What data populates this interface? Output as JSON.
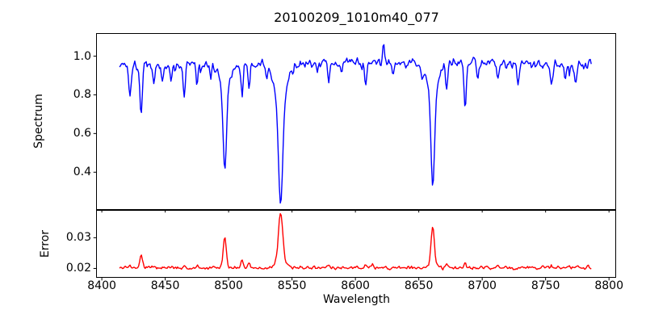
{
  "figure": {
    "title": "20100209_1010m40_077",
    "background_color": "#ffffff",
    "axes_color": "#000000",
    "text_color": "#000000"
  },
  "chart_data": [
    {
      "type": "line",
      "panel": "spectrum",
      "title": "20100209_1010m40_077",
      "ylabel": "Spectrum",
      "color": "#0000ff",
      "grid": false,
      "legend": null,
      "xlim": [
        8395.8,
        8805.3
      ],
      "ylim": [
        0.207,
        1.117
      ],
      "ytick_values": [
        0.4,
        0.6,
        0.8,
        1.0
      ],
      "ytick_labels": [
        "0.4",
        "0.6",
        "0.8",
        "1.0"
      ],
      "x_start": 8414.0,
      "x_end": 8786.5,
      "x_step": 0.75,
      "continuum": 0.962,
      "continuum_wave_amp": 0.007,
      "noise_amp": 0.022,
      "noise_seed": 1337,
      "absorption_lines": [
        {
          "center": 8422.2,
          "depth": 0.16,
          "sigma": 0.9
        },
        {
          "center": 8431.0,
          "depth": 0.25,
          "sigma": 1.0
        },
        {
          "center": 8441.0,
          "depth": 0.1,
          "sigma": 0.8
        },
        {
          "center": 8447.7,
          "depth": 0.1,
          "sigma": 0.8
        },
        {
          "center": 8454.7,
          "depth": 0.09,
          "sigma": 0.8
        },
        {
          "center": 8465.0,
          "depth": 0.16,
          "sigma": 0.9
        },
        {
          "center": 8475.0,
          "depth": 0.1,
          "sigma": 0.8
        },
        {
          "center": 8486.0,
          "depth": 0.08,
          "sigma": 0.7
        },
        {
          "center": 8497.0,
          "depth": 0.4,
          "sigma": 1.25,
          "wing_depth": 0.145,
          "wing_sigma": 3.5
        },
        {
          "center": 8510.6,
          "depth": 0.15,
          "sigma": 0.9
        },
        {
          "center": 8516.0,
          "depth": 0.13,
          "sigma": 0.8
        },
        {
          "center": 8530.0,
          "depth": 0.055,
          "sigma": 0.8
        },
        {
          "center": 8541.0,
          "depth": 0.5,
          "sigma": 1.6,
          "wing_depth": 0.225,
          "wing_sigma": 4.5
        },
        {
          "center": 8579.0,
          "depth": 0.1,
          "sigma": 0.85
        },
        {
          "center": 8589.0,
          "depth": 0.06,
          "sigma": 0.7
        },
        {
          "center": 8608.0,
          "depth": 0.1,
          "sigma": 0.9
        },
        {
          "center": 8629.7,
          "depth": 0.07,
          "sigma": 0.8
        },
        {
          "center": 8652.8,
          "depth": 0.06,
          "sigma": 0.7
        },
        {
          "center": 8661.0,
          "depth": 0.47,
          "sigma": 1.35,
          "wing_depth": 0.175,
          "wing_sigma": 4.0
        },
        {
          "center": 8672.0,
          "depth": 0.13,
          "sigma": 0.8
        },
        {
          "center": 8686.5,
          "depth": 0.22,
          "sigma": 0.9
        },
        {
          "center": 8696.5,
          "depth": 0.08,
          "sigma": 0.8
        },
        {
          "center": 8712.4,
          "depth": 0.09,
          "sigma": 0.8
        },
        {
          "center": 8728.3,
          "depth": 0.09,
          "sigma": 0.8
        },
        {
          "center": 8754.6,
          "depth": 0.1,
          "sigma": 0.8
        },
        {
          "center": 8765.5,
          "depth": 0.07,
          "sigma": 0.7
        },
        {
          "center": 8773.7,
          "depth": 0.09,
          "sigma": 0.8
        }
      ],
      "emission_spikes": [
        {
          "center": 8622.2,
          "height": 0.1,
          "sigma": 0.7
        }
      ]
    },
    {
      "type": "line",
      "panel": "error",
      "ylabel": "Error",
      "xlabel": "Wavelength",
      "color": "#ff0000",
      "grid": false,
      "legend": null,
      "xlim": [
        8395.8,
        8805.3
      ],
      "ylim": [
        0.0171,
        0.0389
      ],
      "ytick_values": [
        0.02,
        0.03
      ],
      "ytick_labels": [
        "0.02",
        "0.03"
      ],
      "xtick_values": [
        8400,
        8450,
        8500,
        8550,
        8600,
        8650,
        8700,
        8750,
        8800
      ],
      "xtick_labels": [
        "8400",
        "8450",
        "8500",
        "8550",
        "8600",
        "8650",
        "8700",
        "8750",
        "8800"
      ],
      "x_start": 8414.0,
      "x_end": 8786.5,
      "x_step": 0.75,
      "baseline": 0.0202,
      "noise_amp": 0.0006,
      "noise_seed": 4242,
      "peaks": [
        {
          "center": 8422.2,
          "height": 0.0015,
          "sigma": 0.8
        },
        {
          "center": 8431.0,
          "height": 0.004,
          "sigma": 1.0
        },
        {
          "center": 8465.0,
          "height": 0.0012,
          "sigma": 0.8
        },
        {
          "center": 8475.0,
          "height": 0.0008,
          "sigma": 0.8
        },
        {
          "center": 8497.0,
          "height": 0.0103,
          "sigma": 1.2
        },
        {
          "center": 8510.6,
          "height": 0.0022,
          "sigma": 0.9
        },
        {
          "center": 8516.0,
          "height": 0.0018,
          "sigma": 0.8
        },
        {
          "center": 8541.0,
          "height": 0.015,
          "sigma": 1.6,
          "wing_height": 0.003,
          "wing_sigma": 4.0
        },
        {
          "center": 8579.0,
          "height": 0.001,
          "sigma": 0.8
        },
        {
          "center": 8608.0,
          "height": 0.0012,
          "sigma": 0.9
        },
        {
          "center": 8613.5,
          "height": 0.0018,
          "sigma": 0.8
        },
        {
          "center": 8661.0,
          "height": 0.0123,
          "sigma": 1.3,
          "wing_height": 0.001,
          "wing_sigma": 3.5
        },
        {
          "center": 8672.0,
          "height": 0.0014,
          "sigma": 0.8
        },
        {
          "center": 8686.5,
          "height": 0.0018,
          "sigma": 0.8
        },
        {
          "center": 8712.4,
          "height": 0.0008,
          "sigma": 0.8
        },
        {
          "center": 8754.6,
          "height": 0.0008,
          "sigma": 0.8
        }
      ]
    }
  ]
}
